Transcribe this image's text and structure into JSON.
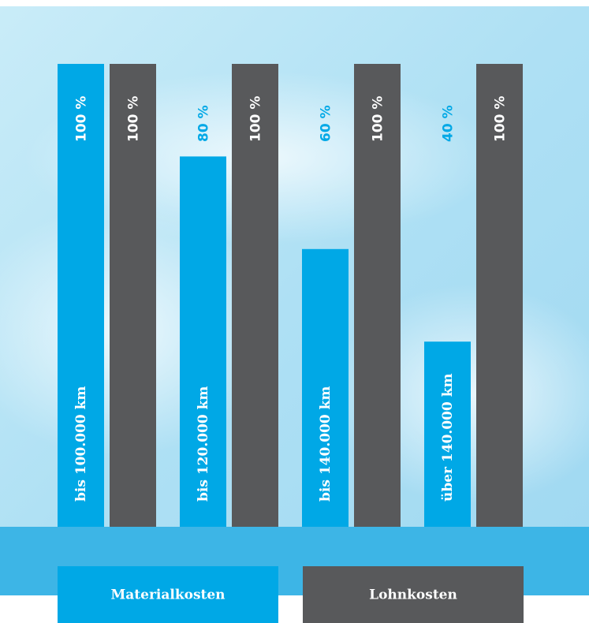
{
  "chart_data": {
    "type": "bar",
    "categories": [
      "bis 100.000 km",
      "bis 120.000 km",
      "bis 140.000 km",
      "über 140.000 km"
    ],
    "series": [
      {
        "name": "Materialkosten",
        "color": "#00a8e6",
        "values": [
          100,
          80,
          60,
          40
        ],
        "value_labels": [
          "100 %",
          "80 %",
          "60 %",
          "40 %"
        ]
      },
      {
        "name": "Lohnkosten",
        "color": "#58595b",
        "values": [
          100,
          100,
          100,
          100
        ],
        "value_labels": [
          "100 %",
          "100 %",
          "100 %",
          "100 %"
        ]
      }
    ],
    "ylim": [
      0,
      100
    ]
  }
}
